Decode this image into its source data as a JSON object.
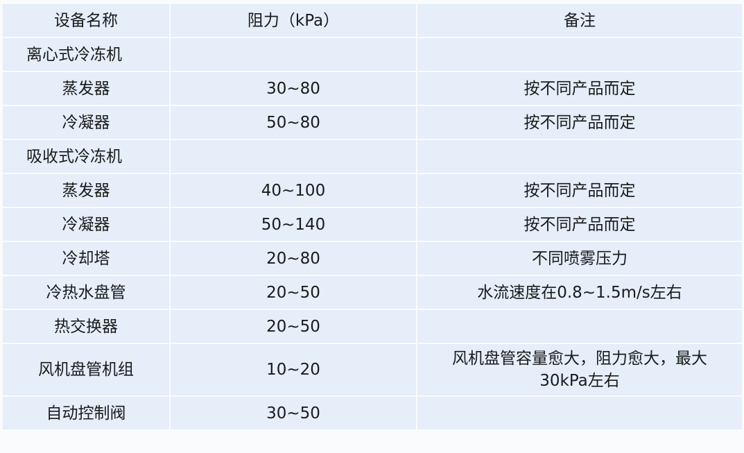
{
  "table": {
    "headers": [
      "设备名称",
      "阻力（kPa）",
      "备注"
    ],
    "rows": [
      {
        "name": "离心式冷冻机",
        "resistance": "",
        "note": "",
        "group": true
      },
      {
        "name": "蒸发器",
        "resistance": "30~80",
        "note": "按不同产品而定"
      },
      {
        "name": "冷凝器",
        "resistance": "50~80",
        "note": "按不同产品而定"
      },
      {
        "name": "吸收式冷冻机",
        "resistance": "",
        "note": "",
        "group": true
      },
      {
        "name": "蒸发器",
        "resistance": "40~100",
        "note": "按不同产品而定"
      },
      {
        "name": "冷凝器",
        "resistance": "50~140",
        "note": "按不同产品而定"
      },
      {
        "name": "冷却塔",
        "resistance": "20~80",
        "note": "不同喷雾压力"
      },
      {
        "name": "冷热水盘管",
        "resistance": "20~50",
        "note": "水流速度在0.8~1.5m/s左右"
      },
      {
        "name": "热交换器",
        "resistance": "20~50",
        "note": ""
      },
      {
        "name": "风机盘管机组",
        "resistance": "10~20",
        "note": "风机盘管容量愈大，阻力愈大，最大30kPa左右",
        "tall": true
      },
      {
        "name": "自动控制阀",
        "resistance": "30~50",
        "note": ""
      }
    ]
  },
  "colors": {
    "cell": "#e5eef9",
    "border": "#ffffff"
  }
}
